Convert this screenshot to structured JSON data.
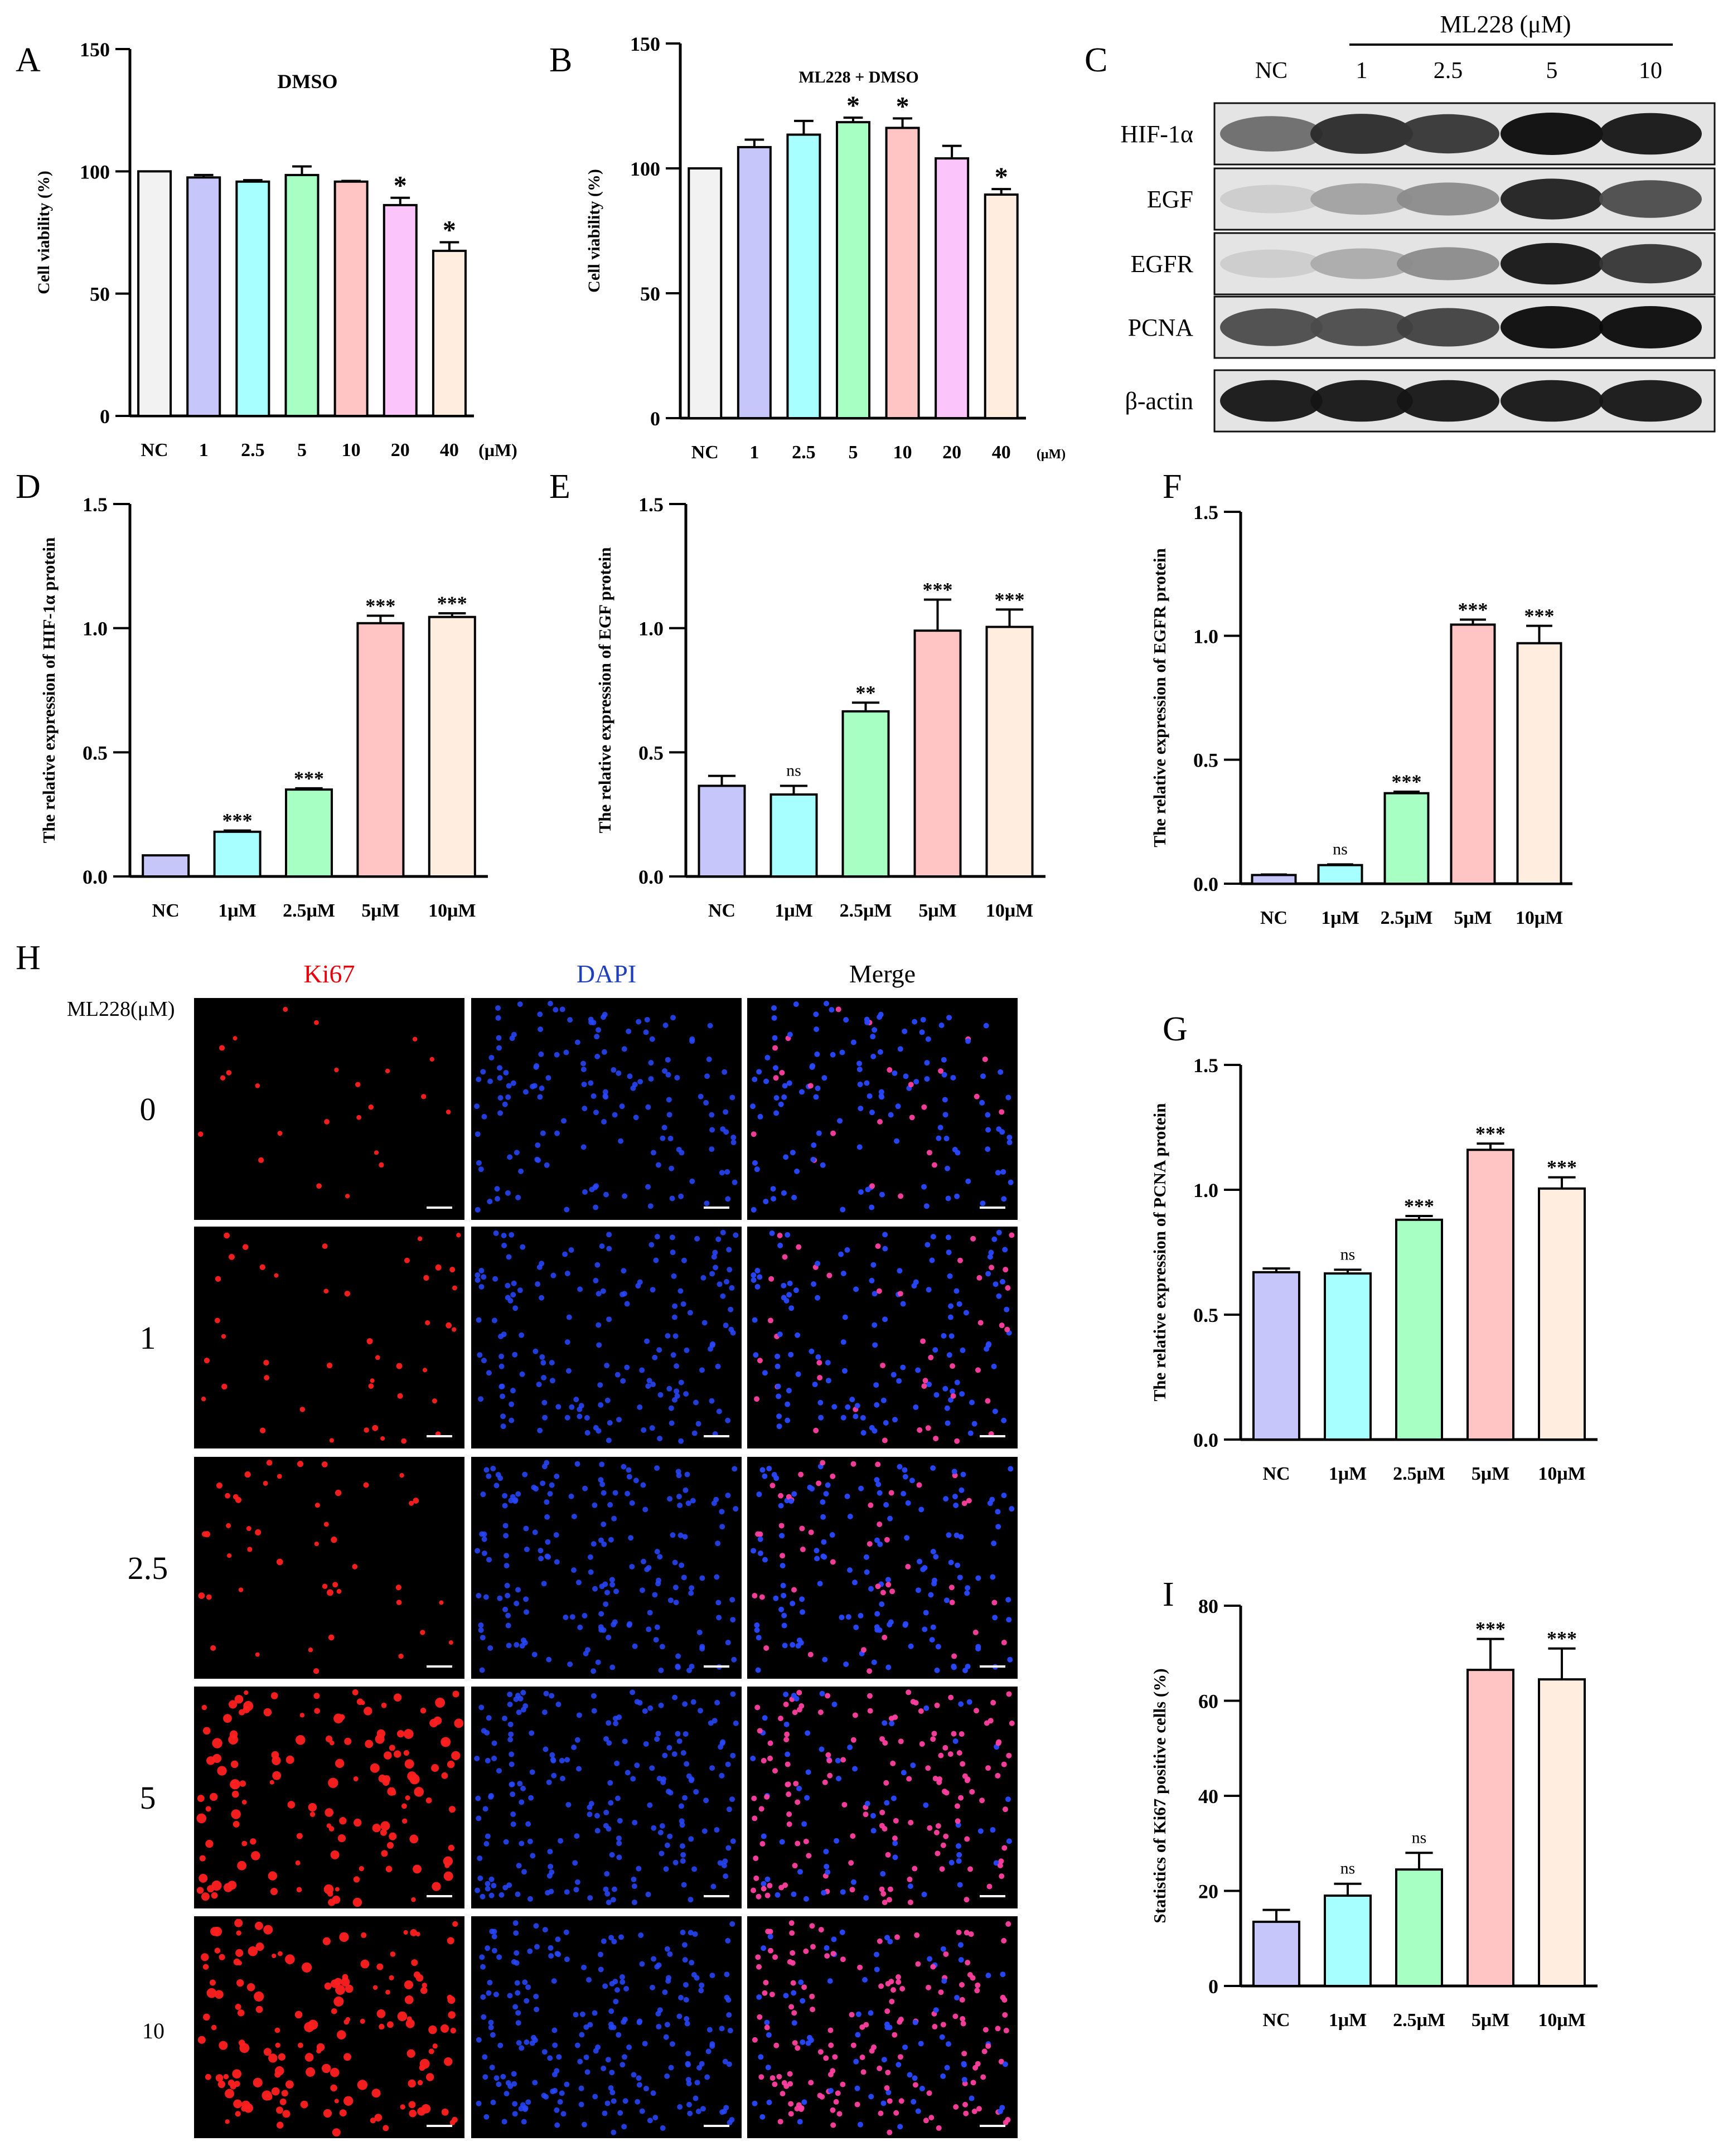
{
  "colors": {
    "bars": [
      "#f2f2f2",
      "#c6c6fb",
      "#a8ffff",
      "#a8ffc4",
      "#ffc4c4",
      "#fbc4fb",
      "#ffeee0"
    ],
    "axis": "#000000",
    "ki67": "#ff2020",
    "dapi": "#2848ff",
    "merge": "#ff40a0",
    "ki67_label": "#e8000b",
    "dapi_label": "#1f3fbf"
  },
  "chart_data": [
    {
      "panel": "A",
      "type": "bar",
      "title": "DMSO",
      "ylabel": "Cell viability (%)",
      "unit": "(μM)",
      "categories": [
        "NC",
        "1",
        "2.5",
        "5",
        "10",
        "20",
        "40"
      ],
      "values": [
        100,
        97.5,
        95.8,
        98.5,
        95.8,
        86.2,
        67.5
      ],
      "errors": [
        0,
        1.0,
        0.6,
        3.5,
        0.3,
        3.0,
        3.5
      ],
      "significance": [
        "",
        "",
        "",
        "",
        "",
        "*",
        "*"
      ],
      "ylim": [
        0,
        150
      ],
      "yticks": [
        0,
        50,
        100,
        150
      ],
      "color_index": [
        0,
        1,
        2,
        3,
        4,
        5,
        6
      ]
    },
    {
      "panel": "B",
      "type": "bar",
      "title": "ML228 + DMSO",
      "ylabel": "Cell viability (%)",
      "unit": "(μM)",
      "categories": [
        "NC",
        "1",
        "2.5",
        "5",
        "10",
        "20",
        "40"
      ],
      "values": [
        100,
        108.5,
        113.5,
        118.5,
        116.2,
        104,
        89.5
      ],
      "errors": [
        0,
        3.0,
        5.5,
        1.8,
        3.8,
        5.0,
        2.2
      ],
      "significance": [
        "",
        "",
        "",
        "*",
        "*",
        "",
        "*"
      ],
      "ylim": [
        0,
        150
      ],
      "yticks": [
        0,
        50,
        100,
        150
      ],
      "color_index": [
        0,
        1,
        2,
        3,
        4,
        5,
        6
      ]
    },
    {
      "panel": "D",
      "type": "bar",
      "title": "",
      "ylabel": "The relative expression of HIF-1α protein",
      "unit": "",
      "categories": [
        "NC",
        "1μM",
        "2.5μM",
        "5μM",
        "10μM"
      ],
      "values": [
        0.085,
        0.18,
        0.35,
        1.02,
        1.045
      ],
      "errors": [
        0,
        0.005,
        0.005,
        0.03,
        0.015
      ],
      "significance": [
        "",
        "***",
        "***",
        "***",
        "***"
      ],
      "ylim": [
        0,
        1.5
      ],
      "yticks": [
        0.0,
        0.5,
        1.0,
        1.5
      ],
      "color_index": [
        1,
        2,
        3,
        4,
        6
      ]
    },
    {
      "panel": "E",
      "type": "bar",
      "title": "",
      "ylabel": "The relative expression of EGF protein",
      "unit": "",
      "categories": [
        "NC",
        "1μM",
        "2.5μM",
        "5μM",
        "10μM"
      ],
      "values": [
        0.365,
        0.33,
        0.665,
        0.99,
        1.005
      ],
      "errors": [
        0.04,
        0.035,
        0.035,
        0.125,
        0.07
      ],
      "significance": [
        "",
        "ns",
        "**",
        "***",
        "***"
      ],
      "ylim": [
        0,
        1.5
      ],
      "yticks": [
        0.0,
        0.5,
        1.0,
        1.5
      ],
      "color_index": [
        1,
        2,
        3,
        4,
        6
      ]
    },
    {
      "panel": "F",
      "type": "bar",
      "title": "",
      "ylabel": "The relative expression of EGFR protein",
      "unit": "",
      "categories": [
        "NC",
        "1μM",
        "2.5μM",
        "5μM",
        "10μM"
      ],
      "values": [
        0.035,
        0.075,
        0.365,
        1.045,
        0.97
      ],
      "errors": [
        0.002,
        0.003,
        0.006,
        0.02,
        0.07
      ],
      "significance": [
        "",
        "ns",
        "***",
        "***",
        "***"
      ],
      "ylim": [
        0,
        1.5
      ],
      "yticks": [
        0.0,
        0.5,
        1.0,
        1.5
      ],
      "color_index": [
        1,
        2,
        3,
        4,
        6
      ]
    },
    {
      "panel": "G",
      "type": "bar",
      "title": "",
      "ylabel": "The relative expression of PCNA protein",
      "unit": "",
      "categories": [
        "NC",
        "1μM",
        "2.5μM",
        "5μM",
        "10μM"
      ],
      "values": [
        0.67,
        0.665,
        0.88,
        1.16,
        1.005
      ],
      "errors": [
        0.015,
        0.015,
        0.015,
        0.025,
        0.045
      ],
      "significance": [
        "",
        "ns",
        "***",
        "***",
        "***"
      ],
      "ylim": [
        0,
        1.5
      ],
      "yticks": [
        0.0,
        0.5,
        1.0,
        1.5
      ],
      "color_index": [
        1,
        2,
        3,
        4,
        6
      ]
    },
    {
      "panel": "I",
      "type": "bar",
      "title": "",
      "ylabel": "Statistics of Ki67 positive cells (%)",
      "unit": "",
      "categories": [
        "NC",
        "1μM",
        "2.5μM",
        "5μM",
        "10μM"
      ],
      "values": [
        13.5,
        19,
        24.5,
        66.5,
        64.5
      ],
      "errors": [
        2.5,
        2.5,
        3.5,
        6.5,
        6.5
      ],
      "significance": [
        "",
        "ns",
        "ns",
        "***",
        "***"
      ],
      "ylim": [
        0,
        80
      ],
      "yticks": [
        0,
        20,
        40,
        60,
        80
      ],
      "color_index": [
        1,
        2,
        3,
        4,
        6
      ]
    }
  ],
  "western_blot": {
    "panel": "C",
    "treatment_label": "ML228 (μM)",
    "lanes": [
      "NC",
      "1",
      "2.5",
      "5",
      "10"
    ],
    "proteins": [
      "HIF-1α",
      "EGF",
      "EGFR",
      "PCNA",
      "β-actin"
    ],
    "band_intensity": [
      [
        0.55,
        0.85,
        0.8,
        1.0,
        0.95
      ],
      [
        0.1,
        0.3,
        0.4,
        0.9,
        0.7
      ],
      [
        0.1,
        0.25,
        0.4,
        0.95,
        0.8
      ],
      [
        0.7,
        0.7,
        0.75,
        1.0,
        1.0
      ],
      [
        0.95,
        0.95,
        0.95,
        0.95,
        0.95
      ]
    ]
  },
  "if_panel": {
    "panel": "H",
    "row_header": "ML228(μM)",
    "channels": [
      "Ki67",
      "DAPI",
      "Merge"
    ],
    "rows": [
      "0",
      "1",
      "2.5",
      "5",
      "10"
    ],
    "ki67_positive_pct": [
      13.5,
      19,
      24.5,
      66.5,
      64.5
    ]
  }
}
